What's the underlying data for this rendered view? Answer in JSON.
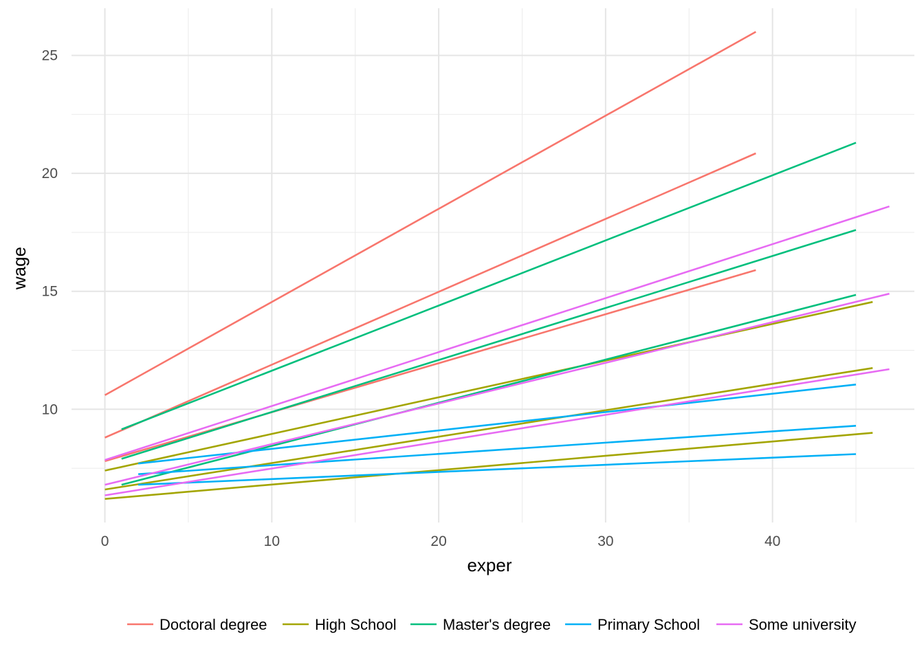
{
  "chart_data": {
    "type": "line",
    "xlabel": "exper",
    "ylabel": "wage",
    "xlim": [
      -2,
      48.5
    ],
    "ylim": [
      5.2,
      27.0
    ],
    "x_major_ticks": [
      0,
      10,
      20,
      30,
      40
    ],
    "x_minor_ticks": [
      5,
      15,
      25,
      35,
      45
    ],
    "y_major_ticks": [
      10,
      15,
      20,
      25
    ],
    "y_minor_ticks": [
      7.5,
      12.5,
      17.5,
      22.5
    ],
    "grid": true,
    "legend_position": "bottom",
    "series": [
      {
        "name": "Doctoral degree",
        "color": "#F8766D",
        "lines": [
          {
            "x": [
              0,
              39
            ],
            "y": [
              10.6,
              26.0
            ]
          },
          {
            "x": [
              0,
              39
            ],
            "y": [
              8.8,
              20.85
            ]
          },
          {
            "x": [
              0,
              39
            ],
            "y": [
              7.8,
              15.9
            ]
          }
        ]
      },
      {
        "name": "High School",
        "color": "#A3A500",
        "lines": [
          {
            "x": [
              0,
              46
            ],
            "y": [
              7.4,
              14.55
            ]
          },
          {
            "x": [
              0,
              46
            ],
            "y": [
              6.6,
              11.75
            ]
          },
          {
            "x": [
              0,
              46
            ],
            "y": [
              6.2,
              9.0
            ]
          }
        ]
      },
      {
        "name": "Master's degree",
        "color": "#00BF7D",
        "lines": [
          {
            "x": [
              1,
              45
            ],
            "y": [
              9.15,
              21.3
            ]
          },
          {
            "x": [
              1,
              45
            ],
            "y": [
              7.9,
              17.6
            ]
          },
          {
            "x": [
              1,
              45
            ],
            "y": [
              6.8,
              14.85
            ]
          }
        ]
      },
      {
        "name": "Primary School",
        "color": "#00B0F6",
        "lines": [
          {
            "x": [
              2,
              45
            ],
            "y": [
              7.7,
              11.05
            ]
          },
          {
            "x": [
              2,
              45
            ],
            "y": [
              7.25,
              9.3
            ]
          },
          {
            "x": [
              2,
              45
            ],
            "y": [
              6.8,
              8.1
            ]
          }
        ]
      },
      {
        "name": "Some university",
        "color": "#E76BF3",
        "lines": [
          {
            "x": [
              0,
              47
            ],
            "y": [
              7.85,
              18.6
            ]
          },
          {
            "x": [
              0,
              47
            ],
            "y": [
              6.8,
              14.9
            ]
          },
          {
            "x": [
              0,
              47
            ],
            "y": [
              6.35,
              11.7
            ]
          }
        ]
      }
    ]
  }
}
